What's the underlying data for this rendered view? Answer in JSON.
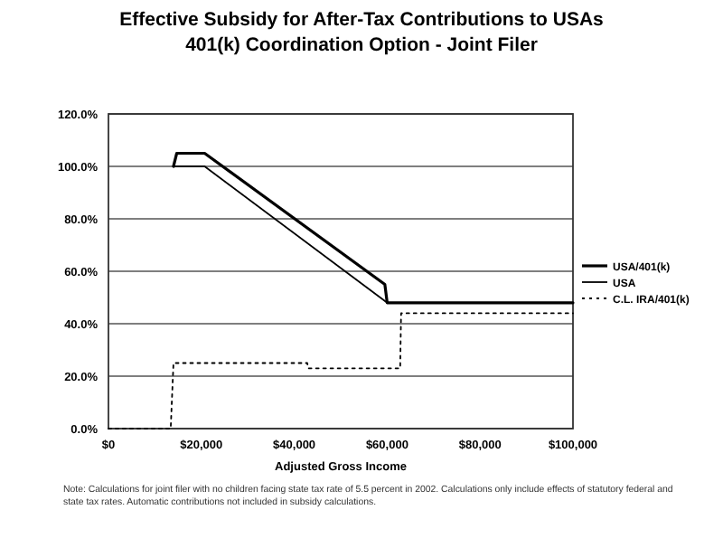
{
  "chart_data": {
    "type": "line",
    "title": "Effective Subsidy for After-Tax Contributions to USAs",
    "subtitle": "401(k) Coordination Option - Joint Filer",
    "xlabel": "Adjusted Gross Income",
    "annotations": [
      "Note: Calculations for joint filer with no children facing state tax rate of 5.5 percent in 2002.  Calculations only include effects of statutory federal and state tax rates.  Automatic contributions not included in subsidy calculations."
    ],
    "series": [
      {
        "name": "USA/401(k)",
        "color": "#000000",
        "line_style": "solid",
        "x": [
          14000,
          14700,
          20700,
          59500,
          60000,
          100000
        ],
        "values": [
          100,
          105,
          105,
          55,
          48,
          48
        ]
      },
      {
        "name": "USA",
        "color": "#000000",
        "line_style": "solid",
        "x": [
          14000,
          20700,
          60000,
          100000
        ],
        "values": [
          100,
          100,
          48,
          48
        ]
      },
      {
        "name": "C.L. IRA/401(k)",
        "color": "#000000",
        "line_style": "dotted",
        "x": [
          0,
          13400,
          14000,
          42800,
          43000,
          62800,
          63000,
          100000
        ],
        "values": [
          0,
          0,
          25,
          25,
          23,
          23,
          44,
          44
        ]
      }
    ],
    "xlim": [
      0,
      100000
    ],
    "xticks": [
      {
        "value": 0,
        "label": "$0"
      },
      {
        "value": 20000,
        "label": "$20,000"
      },
      {
        "value": 40000,
        "label": "$40,000"
      },
      {
        "value": 60000,
        "label": "$60,000"
      },
      {
        "value": 80000,
        "label": "$80,000"
      },
      {
        "value": 100000,
        "label": "$100,000"
      }
    ],
    "ylim": [
      0,
      120
    ],
    "yticks": [
      {
        "value": 0,
        "label": "0.0%"
      },
      {
        "value": 20,
        "label": "20.0%"
      },
      {
        "value": 40,
        "label": "40.0%"
      },
      {
        "value": 60,
        "label": "60.0%"
      },
      {
        "value": 80,
        "label": "80.0%"
      },
      {
        "value": 100,
        "label": "100.0%"
      },
      {
        "value": 120,
        "label": "120.0%"
      }
    ],
    "grid": "y",
    "legend": "right",
    "marker": "none"
  }
}
